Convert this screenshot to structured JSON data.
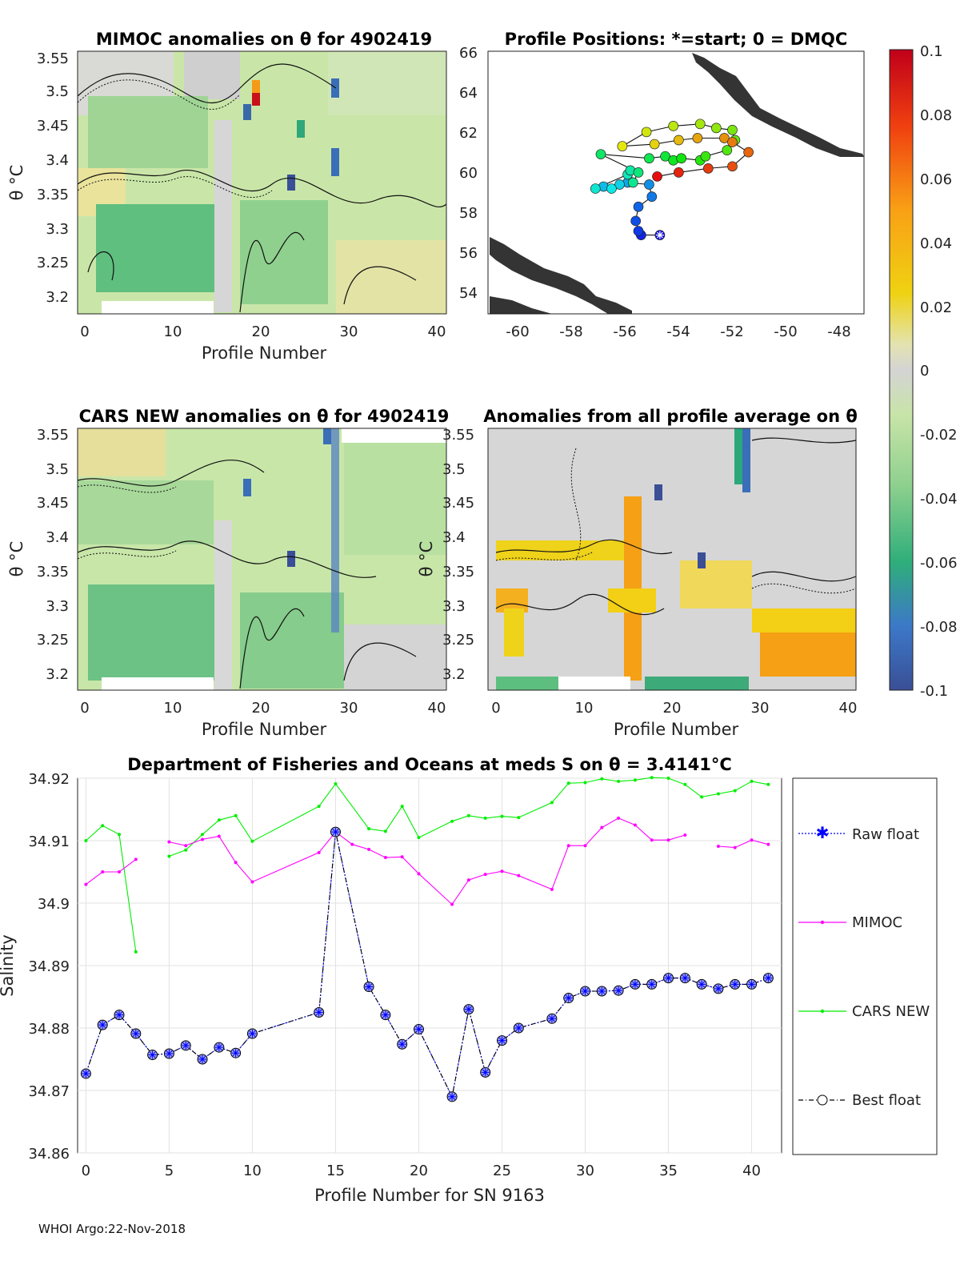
{
  "footer": "WHOI Argo:22-Nov-2018",
  "colorbar": {
    "ticks": [
      "0.1",
      "0.08",
      "0.06",
      "0.04",
      "0.02",
      "0",
      "-0.02",
      "-0.04",
      "-0.06",
      "-0.08",
      "-0.1"
    ]
  },
  "panels": {
    "mimoc": {
      "title": "MIMOC anomalies on θ  for 4902419",
      "xlabel": "Profile Number",
      "ylabel": "θ °C",
      "xticks": [
        "0",
        "10",
        "20",
        "30",
        "40"
      ],
      "yticks": [
        "3.55",
        "3.5",
        "3.45",
        "3.4",
        "3.35",
        "3.3",
        "3.25",
        "3.2"
      ]
    },
    "positions": {
      "title": "Profile Positions: *=start; 0 = DMQC",
      "xticks": [
        "-60",
        "-58",
        "-56",
        "-54",
        "-52",
        "-50",
        "-48"
      ],
      "yticks": [
        "66",
        "64",
        "62",
        "60",
        "58",
        "56",
        "54"
      ]
    },
    "cars": {
      "title": "CARS NEW anomalies on θ for 4902419",
      "xlabel": "Profile Number",
      "ylabel": "θ °C",
      "xticks": [
        "0",
        "10",
        "20",
        "30",
        "40"
      ],
      "yticks": [
        "3.55",
        "3.5",
        "3.45",
        "3.4",
        "3.35",
        "3.3",
        "3.25",
        "3.2"
      ]
    },
    "allavg": {
      "title": "Anomalies from all profile average on θ",
      "xlabel": "Profile Number",
      "ylabel": "θ °C",
      "xticks": [
        "0",
        "10",
        "20",
        "30",
        "40"
      ],
      "yticks": [
        "3.55",
        "3.5",
        "3.45",
        "3.4",
        "3.35",
        "3.3",
        "3.25",
        "3.2"
      ]
    }
  },
  "colors": {
    "raw": "#0000ff",
    "mimoc": "#ff00ff",
    "cars": "#00ee00",
    "best": "#000000",
    "marker_fill": "#9aa0f0"
  },
  "chart_data": [
    {
      "type": "line",
      "title": "Department of Fisheries and Oceans at meds S on θ = 3.4141°C",
      "xlabel": "Profile Number for SN 9163",
      "ylabel": "Salinity",
      "xlim": [
        -0.5,
        41.8
      ],
      "ylim": [
        34.86,
        34.92
      ],
      "xticks": [
        "0",
        "5",
        "10",
        "15",
        "20",
        "25",
        "30",
        "35",
        "40"
      ],
      "yticks": [
        "34.92",
        "34.91",
        "34.9",
        "34.89",
        "34.88",
        "34.87",
        "34.86"
      ],
      "legend_position": "right",
      "series": [
        {
          "name": "Raw float",
          "x": [
            0,
            1,
            2,
            3,
            4,
            5,
            6,
            7,
            8,
            9,
            10,
            14,
            15,
            17,
            18,
            19,
            20,
            22,
            23,
            24,
            25,
            26,
            28,
            29,
            30,
            31,
            32,
            33,
            34,
            35,
            36,
            37,
            38,
            39,
            40,
            41
          ],
          "values": [
            34.8727,
            34.8805,
            34.8821,
            34.8791,
            34.8757,
            34.8759,
            34.8772,
            34.875,
            34.8769,
            34.876,
            34.8791,
            34.8825,
            34.9114,
            34.8866,
            34.8821,
            34.8774,
            34.8798,
            34.869,
            34.883,
            34.8729,
            34.878,
            34.88,
            34.8815,
            34.8848,
            34.8859,
            34.8859,
            34.886,
            34.887,
            34.887,
            34.888,
            34.888,
            34.887,
            34.8863,
            34.887,
            34.887,
            34.888
          ]
        },
        {
          "name": "MIMOC",
          "x": [
            0,
            1,
            2,
            3,
            null,
            5,
            6,
            7,
            8,
            9,
            10,
            14,
            15,
            16,
            17,
            18,
            19,
            20,
            22,
            23,
            24,
            25,
            26,
            28,
            29,
            30,
            31,
            32,
            33,
            34,
            35,
            36,
            null,
            38,
            39,
            40,
            41
          ],
          "values": [
            34.903,
            34.905,
            34.905,
            34.907,
            null,
            34.9098,
            34.9092,
            34.9102,
            34.9107,
            34.9065,
            34.9034,
            34.9081,
            34.9114,
            34.9094,
            34.9086,
            34.9073,
            34.9074,
            34.9047,
            34.8998,
            34.9037,
            34.9046,
            34.9051,
            34.9044,
            34.9022,
            34.9092,
            34.9092,
            34.9121,
            34.9136,
            34.9125,
            34.9101,
            34.9101,
            34.9109,
            null,
            34.9091,
            34.9089,
            34.9101,
            34.9094
          ]
        },
        {
          "name": "CARS NEW",
          "x": [
            0,
            1,
            2,
            3,
            null,
            5,
            6,
            7,
            8,
            9,
            10,
            14,
            15,
            17,
            18,
            19,
            20,
            22,
            23,
            24,
            25,
            26,
            28,
            29,
            30,
            31,
            32,
            33,
            34,
            35,
            36,
            37,
            38,
            39,
            40,
            41
          ],
          "values": [
            34.91,
            34.9124,
            34.911,
            34.8922,
            null,
            34.9075,
            34.9085,
            34.911,
            34.9133,
            34.914,
            34.9099,
            34.9155,
            34.9191,
            34.9119,
            34.9115,
            34.9155,
            34.9105,
            34.9131,
            34.914,
            34.9136,
            34.9139,
            34.9137,
            34.9161,
            34.9192,
            34.9193,
            34.9199,
            34.9195,
            34.9197,
            34.9201,
            34.92,
            34.919,
            34.917,
            34.9175,
            34.918,
            34.9195,
            34.919
          ]
        },
        {
          "name": "Best float",
          "x": [
            0,
            1,
            2,
            3,
            4,
            5,
            6,
            7,
            8,
            9,
            10,
            14,
            15,
            17,
            18,
            19,
            20,
            22,
            23,
            24,
            25,
            26,
            28,
            29,
            30,
            31,
            32,
            33,
            34,
            35,
            36,
            37,
            38,
            39,
            40,
            41
          ],
          "values": [
            34.8727,
            34.8805,
            34.8821,
            34.8791,
            34.8757,
            34.8759,
            34.8772,
            34.875,
            34.8769,
            34.876,
            34.8791,
            34.8825,
            34.9114,
            34.8866,
            34.8821,
            34.8774,
            34.8798,
            34.869,
            34.883,
            34.8729,
            34.878,
            34.88,
            34.8815,
            34.8848,
            34.8859,
            34.8859,
            34.886,
            34.887,
            34.887,
            34.888,
            34.888,
            34.887,
            34.8863,
            34.887,
            34.887,
            34.888
          ]
        }
      ]
    },
    {
      "type": "scatter",
      "title": "Profile Positions: *=start; 0 = DMQC",
      "xlim": [
        -61,
        -47
      ],
      "ylim": [
        53,
        66
      ],
      "color_scale": "profile index (blue=start, red=end)",
      "lon": [
        -54.6,
        -55.3,
        -55.4,
        -55.5,
        -55.4,
        -54.9,
        -55.0,
        -55.8,
        -56.7,
        -56.1,
        -56.4,
        -57.0,
        -55.8,
        -55.7,
        -55.6,
        -55.4,
        -56.8,
        -55.0,
        -54.4,
        -54.1,
        -53.8,
        -53.1,
        -52.9,
        -52.1,
        -51.8,
        -51.9,
        -52.5,
        -53.1,
        -54.1,
        -55.1,
        -56.0,
        -54.8,
        -53.9,
        -53.2,
        -52.2,
        -51.9,
        -51.3,
        -51.9,
        -52.8,
        -53.9,
        -54.7
      ],
      "lat": [
        56.9,
        56.9,
        57.1,
        57.6,
        58.3,
        58.8,
        59.4,
        59.5,
        59.3,
        59.4,
        59.2,
        59.2,
        59.9,
        60.1,
        59.5,
        60.0,
        60.9,
        60.7,
        60.8,
        60.6,
        60.7,
        60.6,
        60.8,
        61.1,
        61.6,
        62.1,
        62.2,
        62.4,
        62.3,
        62.0,
        61.3,
        61.4,
        61.6,
        61.7,
        61.7,
        61.5,
        61.0,
        60.3,
        60.2,
        60.0,
        59.8
      ]
    }
  ]
}
